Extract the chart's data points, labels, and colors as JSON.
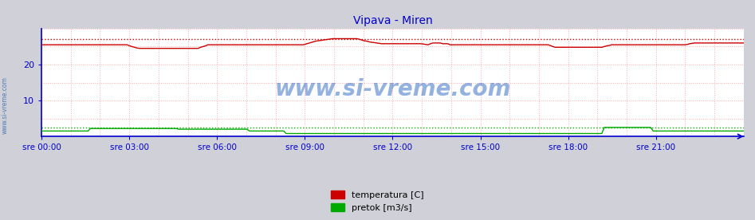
{
  "title": "Vipava - Miren",
  "title_color": "#0000cc",
  "title_fontsize": 10,
  "bg_color": "#d0d0d8",
  "plot_bg_color": "#ffffff",
  "grid_color": "#ffaaaa",
  "xlabel_ticks": [
    "sre 00:00",
    "sre 03:00",
    "sre 06:00",
    "sre 09:00",
    "sre 12:00",
    "sre 15:00",
    "sre 18:00",
    "sre 21:00"
  ],
  "xlabel_pos_norm": [
    0.0,
    0.125,
    0.25,
    0.375,
    0.5,
    0.625,
    0.75,
    0.875
  ],
  "ylim": [
    0,
    30
  ],
  "temp_color": "#cc0000",
  "pretok_color": "#00aa00",
  "axis_color": "#0000cc",
  "watermark_text": "www.si-vreme.com",
  "watermark_color": "#1155bb",
  "watermark_fontsize": 20,
  "watermark_alpha": 0.45,
  "side_label": "www.si-vreme.com",
  "side_label_color": "#3366aa",
  "legend_labels": [
    "temperatura [C]",
    "pretok [m3/s]"
  ],
  "legend_colors": [
    "#cc0000",
    "#00aa00"
  ],
  "n_points": 288,
  "temp_values": [
    25.5,
    25.5,
    25.5,
    25.5,
    25.5,
    25.5,
    25.5,
    25.5,
    25.5,
    25.5,
    25.5,
    25.5,
    25.5,
    25.5,
    25.5,
    25.5,
    25.5,
    25.5,
    25.5,
    25.5,
    25.5,
    25.5,
    25.5,
    25.5,
    25.5,
    25.5,
    25.5,
    25.5,
    25.5,
    25.5,
    25.5,
    25.5,
    25.5,
    25.5,
    25.5,
    25.5,
    25.2,
    25.0,
    24.8,
    24.6,
    24.5,
    24.5,
    24.5,
    24.5,
    24.5,
    24.5,
    24.5,
    24.5,
    24.5,
    24.5,
    24.5,
    24.5,
    24.5,
    24.5,
    24.5,
    24.5,
    24.5,
    24.5,
    24.5,
    24.5,
    24.5,
    24.5,
    24.5,
    24.5,
    24.5,
    24.8,
    25.0,
    25.2,
    25.5,
    25.5,
    25.5,
    25.5,
    25.5,
    25.5,
    25.5,
    25.5,
    25.5,
    25.5,
    25.5,
    25.5,
    25.5,
    25.5,
    25.5,
    25.5,
    25.5,
    25.5,
    25.5,
    25.5,
    25.5,
    25.5,
    25.5,
    25.5,
    25.5,
    25.5,
    25.5,
    25.5,
    25.5,
    25.5,
    25.5,
    25.5,
    25.5,
    25.5,
    25.5,
    25.5,
    25.5,
    25.5,
    25.5,
    25.5,
    25.7,
    25.9,
    26.1,
    26.3,
    26.5,
    26.6,
    26.7,
    26.8,
    26.9,
    27.0,
    27.1,
    27.2,
    27.2,
    27.2,
    27.2,
    27.2,
    27.2,
    27.2,
    27.2,
    27.2,
    27.2,
    27.2,
    27.0,
    26.8,
    26.6,
    26.5,
    26.3,
    26.2,
    26.1,
    26.0,
    25.9,
    25.8,
    25.8,
    25.8,
    25.8,
    25.8,
    25.8,
    25.8,
    25.8,
    25.8,
    25.8,
    25.8,
    25.8,
    25.8,
    25.8,
    25.8,
    25.8,
    25.8,
    25.7,
    25.6,
    25.5,
    25.8,
    26.0,
    26.0,
    26.0,
    26.0,
    25.8,
    25.8,
    25.8,
    25.5,
    25.5,
    25.5,
    25.5,
    25.5,
    25.5,
    25.5,
    25.5,
    25.5,
    25.5,
    25.5,
    25.5,
    25.5,
    25.5,
    25.5,
    25.5,
    25.5,
    25.5,
    25.5,
    25.5,
    25.5,
    25.5,
    25.5,
    25.5,
    25.5,
    25.5,
    25.5,
    25.5,
    25.5,
    25.5,
    25.5,
    25.5,
    25.5,
    25.5,
    25.5,
    25.5,
    25.5,
    25.5,
    25.5,
    25.5,
    25.5,
    25.3,
    25.0,
    24.8,
    24.8,
    24.8,
    24.8,
    24.8,
    24.8,
    24.8,
    24.8,
    24.8,
    24.8,
    24.8,
    24.8,
    24.8,
    24.8,
    24.8,
    24.8,
    24.8,
    24.8,
    24.8,
    24.8,
    25.0,
    25.2,
    25.3,
    25.5,
    25.5,
    25.5,
    25.5,
    25.5,
    25.5,
    25.5,
    25.5,
    25.5,
    25.5,
    25.5,
    25.5,
    25.5,
    25.5,
    25.5,
    25.5,
    25.5,
    25.5,
    25.5,
    25.5,
    25.5,
    25.5,
    25.5,
    25.5,
    25.5,
    25.5,
    25.5,
    25.5,
    25.5,
    25.5,
    25.5,
    25.6,
    25.8,
    25.9,
    26.0,
    26.0,
    26.0,
    26.0,
    26.0,
    26.0,
    26.0,
    26.0,
    26.0,
    26.0,
    26.0,
    26.0,
    26.0,
    26.0,
    26.0,
    26.0,
    26.0,
    26.0,
    26.0,
    26.0,
    26.0,
    26.0,
    26.0
  ],
  "pretok_values": [
    1.5,
    1.5,
    1.5,
    1.5,
    1.5,
    1.5,
    1.5,
    1.5,
    1.5,
    1.5,
    1.5,
    1.5,
    1.5,
    1.5,
    1.5,
    1.5,
    1.5,
    1.5,
    1.5,
    1.5,
    2.2,
    2.2,
    2.2,
    2.2,
    2.2,
    2.2,
    2.2,
    2.2,
    2.2,
    2.2,
    2.2,
    2.2,
    2.2,
    2.2,
    2.2,
    2.2,
    2.2,
    2.2,
    2.2,
    2.2,
    2.2,
    2.2,
    2.2,
    2.2,
    2.2,
    2.2,
    2.2,
    2.2,
    2.2,
    2.2,
    2.2,
    2.2,
    2.2,
    2.2,
    2.2,
    2.2,
    2.0,
    2.0,
    2.0,
    2.0,
    2.0,
    2.0,
    2.0,
    2.0,
    2.0,
    2.0,
    2.0,
    2.0,
    2.0,
    2.0,
    2.0,
    2.0,
    2.0,
    2.0,
    2.0,
    2.0,
    2.0,
    2.0,
    2.0,
    2.0,
    2.0,
    2.0,
    2.0,
    2.0,
    2.0,
    1.5,
    1.5,
    1.5,
    1.5,
    1.5,
    1.5,
    1.5,
    1.5,
    1.5,
    1.5,
    1.5,
    1.5,
    1.5,
    1.5,
    1.5,
    0.8,
    0.8,
    0.8,
    0.8,
    0.8,
    0.8,
    0.8,
    0.8,
    0.8,
    0.8,
    0.8,
    0.8,
    0.8,
    0.8,
    0.8,
    0.8,
    0.8,
    0.8,
    0.8,
    0.8,
    0.8,
    0.8,
    0.8,
    0.8,
    0.8,
    0.8,
    0.8,
    0.8,
    0.8,
    0.8,
    0.8,
    0.8,
    0.8,
    0.8,
    0.8,
    0.8,
    0.8,
    0.8,
    0.8,
    0.8,
    0.8,
    0.8,
    0.8,
    0.8,
    0.8,
    0.8,
    0.8,
    0.8,
    0.8,
    0.8,
    0.8,
    0.8,
    0.8,
    0.8,
    0.8,
    0.8,
    0.8,
    0.8,
    0.8,
    0.8,
    0.8,
    0.8,
    0.8,
    0.8,
    0.8,
    0.8,
    0.8,
    0.8,
    0.8,
    0.8,
    0.8,
    0.8,
    0.8,
    0.8,
    0.8,
    0.8,
    0.8,
    0.8,
    0.8,
    0.8,
    0.8,
    0.8,
    0.8,
    0.8,
    0.8,
    0.8,
    0.8,
    0.8,
    0.8,
    0.8,
    0.8,
    0.8,
    0.8,
    0.8,
    0.8,
    0.8,
    0.8,
    0.8,
    0.8,
    0.8,
    0.8,
    0.8,
    0.8,
    0.8,
    0.8,
    0.8,
    0.8,
    0.8,
    0.8,
    0.8,
    0.8,
    0.8,
    0.8,
    0.8,
    0.8,
    0.8,
    0.8,
    0.8,
    0.8,
    0.8,
    0.8,
    0.8,
    0.8,
    0.8,
    0.8,
    0.8,
    0.8,
    0.8,
    0.8,
    0.8,
    2.5,
    2.5,
    2.5,
    2.5,
    2.5,
    2.5,
    2.5,
    2.5,
    2.5,
    2.5,
    2.5,
    2.5,
    2.5,
    2.5,
    2.5,
    2.5,
    2.5,
    2.5,
    2.5,
    2.5,
    1.5,
    1.5,
    1.5,
    1.5,
    1.5,
    1.5,
    1.5,
    1.5,
    1.5,
    1.5,
    1.5,
    1.5,
    1.5,
    1.5,
    1.5,
    1.5,
    1.5,
    1.5,
    1.5,
    1.5,
    1.5,
    1.5,
    1.5,
    1.5,
    1.5,
    1.5,
    1.5,
    1.5,
    1.5,
    1.5,
    1.5,
    1.5,
    1.5,
    1.5,
    1.5,
    1.5,
    1.5,
    1.5,
    1.5,
    1.5
  ]
}
